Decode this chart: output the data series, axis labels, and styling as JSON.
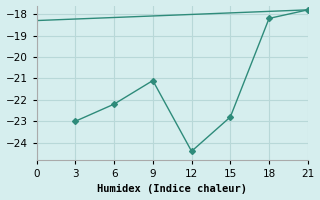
{
  "line1_x": [
    0,
    21
  ],
  "line1_y": [
    -18.3,
    -17.8
  ],
  "line2_x": [
    3,
    6,
    9,
    12,
    15,
    18,
    21
  ],
  "line2_y": [
    -23.0,
    -22.2,
    -21.1,
    -24.4,
    -22.8,
    -18.2,
    -17.8
  ],
  "xlabel": "Humidex (Indice chaleur)",
  "xlim": [
    0,
    21
  ],
  "ylim": [
    -24.8,
    -17.6
  ],
  "xticks": [
    0,
    3,
    6,
    9,
    12,
    15,
    18,
    21
  ],
  "yticks": [
    -24,
    -23,
    -22,
    -21,
    -20,
    -19,
    -18
  ],
  "line_color": "#2e8b7a",
  "bg_color": "#d6eeee",
  "grid_color": "#b8d8d8",
  "marker": "D",
  "markersize": 3,
  "linewidth": 1.0,
  "label_fontsize": 7.5
}
